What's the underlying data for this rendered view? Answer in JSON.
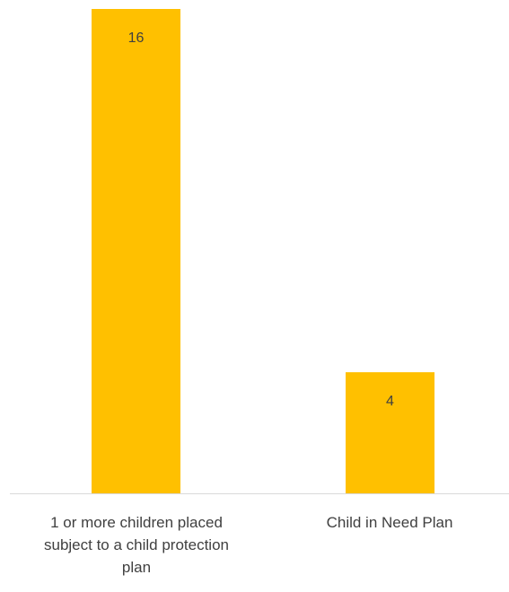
{
  "chart_data": {
    "type": "bar",
    "categories": [
      "1 or more children placed subject to a child protection plan",
      "Child in Need Plan"
    ],
    "category_label_lines": [
      [
        "1 or more children placed",
        "subject to a child protection",
        "plan"
      ],
      [
        "Child in Need Plan"
      ]
    ],
    "values": [
      16,
      4
    ],
    "data_labels": [
      "16",
      "4"
    ],
    "title": "",
    "xlabel": "",
    "ylabel": "",
    "ylim": [
      0,
      16
    ],
    "grid": false,
    "legend": "none",
    "bar_color": "#FFC000",
    "axis_color": "#D9D9D9",
    "label_color": "#404040"
  }
}
